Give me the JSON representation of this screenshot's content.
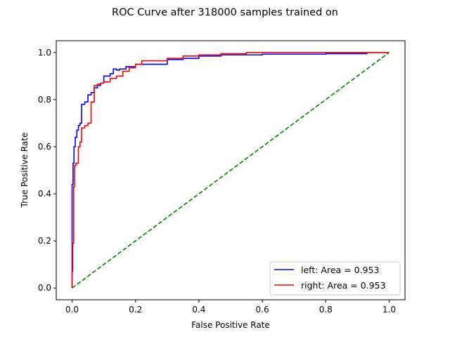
{
  "chart_data": {
    "type": "line",
    "title": "ROC Curve after 318000 samples trained on",
    "xlabel": "False Positive Rate",
    "ylabel": "True Positive Rate",
    "xlim": [
      -0.05,
      1.05
    ],
    "ylim": [
      -0.05,
      1.05
    ],
    "x_ticks": [
      0.0,
      0.2,
      0.4,
      0.6,
      0.8,
      1.0
    ],
    "y_ticks": [
      0.0,
      0.2,
      0.4,
      0.6,
      0.8,
      1.0
    ],
    "x_tick_labels": [
      "0.0",
      "0.2",
      "0.4",
      "0.6",
      "0.8",
      "1.0"
    ],
    "y_tick_labels": [
      "0.0",
      "0.2",
      "0.4",
      "0.6",
      "0.8",
      "1.0"
    ],
    "grid": false,
    "legend_position": "bottom-right",
    "series": [
      {
        "name": "left: Area = 0.953",
        "color": "#0000ff",
        "style": "solid",
        "x": [
          0.0,
          0.0,
          0.003,
          0.003,
          0.006,
          0.006,
          0.01,
          0.01,
          0.015,
          0.015,
          0.02,
          0.02,
          0.025,
          0.025,
          0.03,
          0.03,
          0.04,
          0.04,
          0.05,
          0.05,
          0.06,
          0.06,
          0.07,
          0.07,
          0.08,
          0.08,
          0.09,
          0.09,
          0.1,
          0.1,
          0.12,
          0.12,
          0.13,
          0.13,
          0.14,
          0.14,
          0.15,
          0.15,
          0.17,
          0.17,
          0.2,
          0.2,
          0.3,
          0.3,
          0.35,
          0.35,
          0.4,
          0.4,
          0.47,
          0.47,
          0.6,
          0.6,
          0.8,
          0.8,
          0.93,
          0.93,
          1.0
        ],
        "y": [
          0.0,
          0.44,
          0.44,
          0.53,
          0.53,
          0.6,
          0.6,
          0.64,
          0.64,
          0.67,
          0.67,
          0.69,
          0.69,
          0.7,
          0.7,
          0.78,
          0.78,
          0.79,
          0.79,
          0.82,
          0.82,
          0.83,
          0.83,
          0.85,
          0.85,
          0.86,
          0.86,
          0.87,
          0.87,
          0.9,
          0.9,
          0.91,
          0.91,
          0.93,
          0.93,
          0.925,
          0.925,
          0.93,
          0.93,
          0.94,
          0.94,
          0.95,
          0.95,
          0.97,
          0.97,
          0.975,
          0.975,
          0.985,
          0.985,
          0.99,
          0.99,
          0.993,
          0.993,
          0.995,
          0.995,
          1.0,
          1.0
        ]
      },
      {
        "name": "right: Area = 0.953",
        "color": "#ff0000",
        "style": "solid",
        "x": [
          0.0,
          0.0,
          0.002,
          0.002,
          0.005,
          0.005,
          0.008,
          0.008,
          0.012,
          0.012,
          0.02,
          0.02,
          0.025,
          0.025,
          0.03,
          0.03,
          0.04,
          0.04,
          0.05,
          0.05,
          0.06,
          0.06,
          0.07,
          0.07,
          0.08,
          0.08,
          0.09,
          0.09,
          0.1,
          0.1,
          0.12,
          0.12,
          0.14,
          0.14,
          0.16,
          0.16,
          0.18,
          0.18,
          0.2,
          0.2,
          0.22,
          0.22,
          0.3,
          0.3,
          0.35,
          0.35,
          0.4,
          0.4,
          0.47,
          0.47,
          0.55,
          0.55,
          1.0
        ],
        "y": [
          0.0,
          0.07,
          0.07,
          0.19,
          0.19,
          0.43,
          0.43,
          0.52,
          0.52,
          0.53,
          0.53,
          0.6,
          0.6,
          0.62,
          0.62,
          0.68,
          0.68,
          0.69,
          0.69,
          0.7,
          0.7,
          0.79,
          0.79,
          0.86,
          0.86,
          0.865,
          0.865,
          0.87,
          0.87,
          0.875,
          0.875,
          0.89,
          0.89,
          0.9,
          0.9,
          0.92,
          0.92,
          0.935,
          0.935,
          0.95,
          0.95,
          0.965,
          0.965,
          0.975,
          0.975,
          0.985,
          0.985,
          0.99,
          0.99,
          0.995,
          0.995,
          1.0,
          1.0
        ]
      },
      {
        "name": "",
        "color": "#008000",
        "style": "dashed",
        "x": [
          0.0,
          1.0
        ],
        "y": [
          0.0,
          1.0
        ]
      }
    ],
    "legend_entries": [
      "left: Area = 0.953",
      "right: Area = 0.953"
    ]
  }
}
